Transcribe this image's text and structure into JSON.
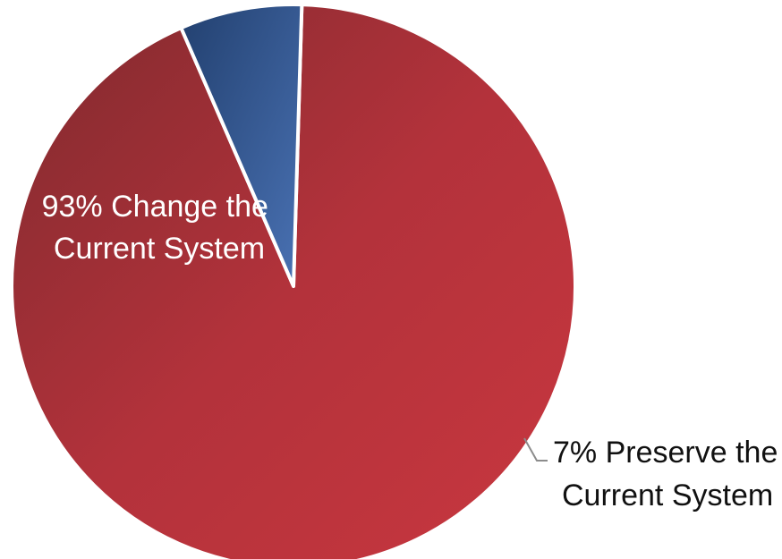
{
  "chart_data": {
    "type": "pie",
    "title": "",
    "slices": [
      {
        "label": "Change the Current System",
        "value": 93,
        "color": "#b5333c",
        "label_lines": [
          "93% Change the",
          "Current System"
        ],
        "label_placement": "inside"
      },
      {
        "label": "Preserve the Current System",
        "value": 7,
        "color": "#3b5f9a",
        "label_lines": [
          "7% Preserve the",
          "Current System"
        ],
        "label_placement": "outside with leader line"
      }
    ],
    "legend": "none"
  }
}
